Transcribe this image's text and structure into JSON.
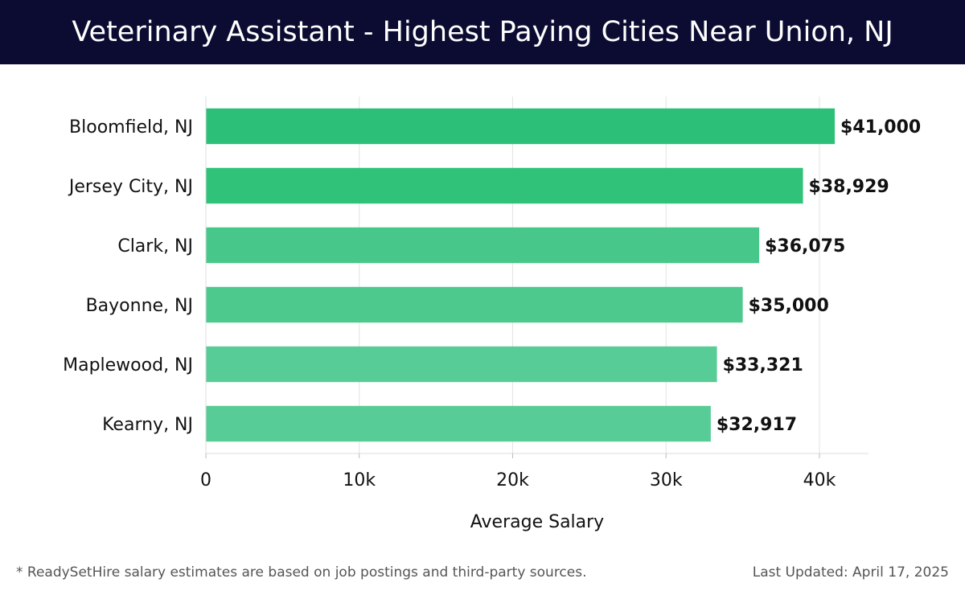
{
  "header": {
    "title": "Veterinary Assistant - Highest Paying Cities Near Union, NJ"
  },
  "footer": {
    "note": "* ReadySetHire salary estimates are based on job postings and third-party sources.",
    "updated": "Last Updated: April 17, 2025"
  },
  "colors": {
    "header_bg": "#0c0c33",
    "bar_colors": [
      "#2cbf77",
      "#31c27a",
      "#47c78a",
      "#4ec98e",
      "#58cc96",
      "#58cc96"
    ]
  },
  "chart_data": {
    "type": "bar",
    "orientation": "horizontal",
    "categories": [
      "Bloomfield, NJ",
      "Jersey City, NJ",
      "Clark, NJ",
      "Bayonne, NJ",
      "Maplewood, NJ",
      "Kearny, NJ"
    ],
    "values": [
      41000,
      38929,
      36075,
      35000,
      33321,
      32917
    ],
    "value_labels": [
      "$41,000",
      "$38,929",
      "$36,075",
      "$35,000",
      "$33,321",
      "$32,917"
    ],
    "xlabel": "Average Salary",
    "ylabel": "",
    "xlim": [
      0,
      43200
    ],
    "xticks": [
      0,
      10000,
      20000,
      30000,
      40000
    ],
    "xtick_labels": [
      "0",
      "10k",
      "20k",
      "30k",
      "40k"
    ],
    "grid": "vertical"
  }
}
